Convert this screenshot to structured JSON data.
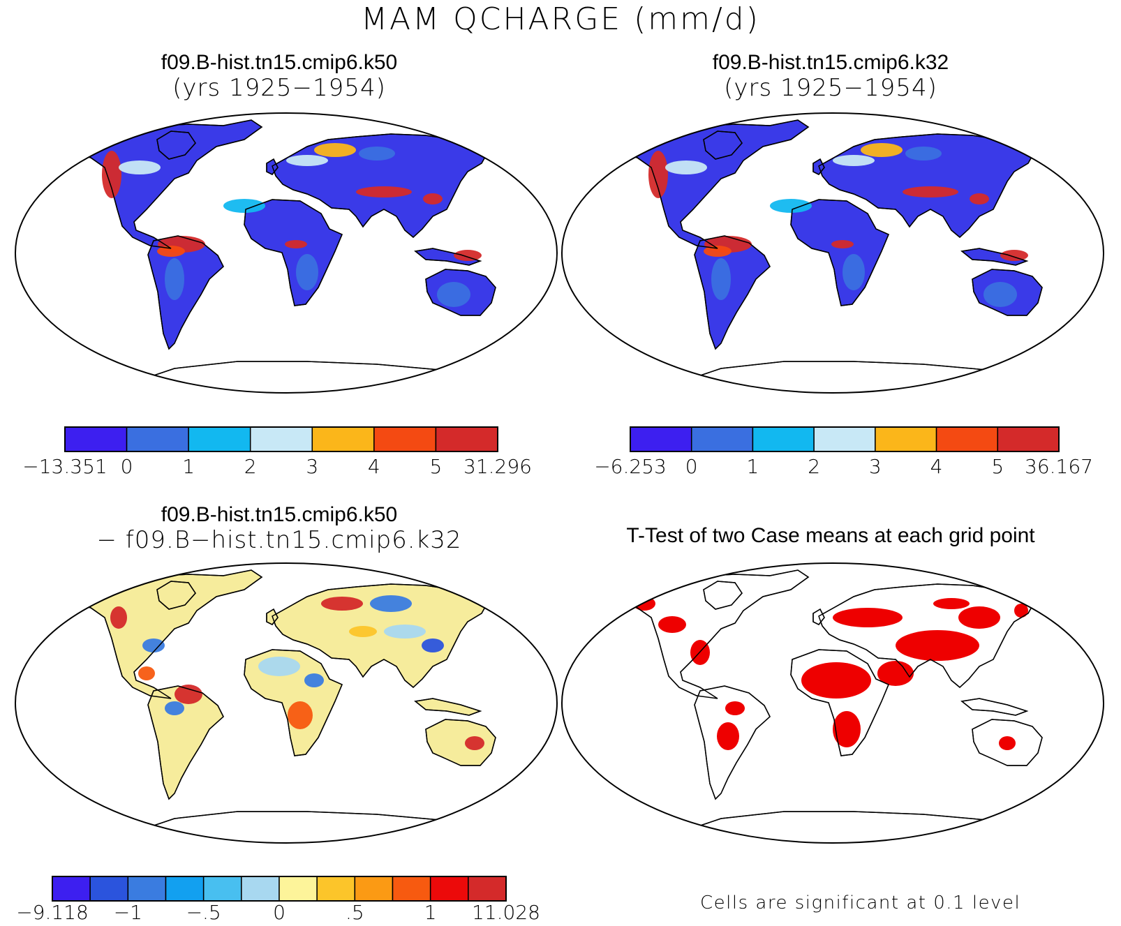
{
  "title": "MAM QCHARGE (mm/d)",
  "panels": [
    {
      "id": "k50",
      "title_line1": "f09.B-hist.tn15.cmip6.k50",
      "title_line2": "(yrs 1925−1954)"
    },
    {
      "id": "k32",
      "title_line1": "f09.B-hist.tn15.cmip6.k32",
      "title_line2": "(yrs 1925−1954)"
    },
    {
      "id": "diff",
      "title_line1": "f09.B-hist.tn15.cmip6.k50",
      "title_line2": "− f09.B−hist.tn15.cmip6.k32"
    },
    {
      "id": "ttest",
      "title_line1": "T-Test of two Case means at each grid point",
      "title_line2": ""
    }
  ],
  "colorbars": {
    "k50": {
      "colors": [
        "#3d1ff0",
        "#3a6fe0",
        "#12b8f0",
        "#c8e8f6",
        "#fbb61a",
        "#f44a12",
        "#d42a2a"
      ],
      "labels": [
        "−13.351",
        "0",
        "1",
        "2",
        "3",
        "4",
        "5",
        "31.296"
      ]
    },
    "k32": {
      "colors": [
        "#3d1ff0",
        "#3a6fe0",
        "#12b8f0",
        "#c8e8f6",
        "#fbb61a",
        "#f44a12",
        "#d42a2a"
      ],
      "labels": [
        "−6.253",
        "0",
        "1",
        "2",
        "3",
        "4",
        "5",
        "36.167"
      ]
    },
    "diff": {
      "colors": [
        "#3d1ff0",
        "#2b54dd",
        "#3a7ce0",
        "#12a0f0",
        "#48bff0",
        "#a8d8f0",
        "#fdf49a",
        "#fcc52a",
        "#fb9a14",
        "#f75a10",
        "#ec0a0a",
        "#d42a2a"
      ],
      "labels": [
        "−9.118",
        "−1",
        "−.5",
        "0",
        ".5",
        "1",
        "11.028"
      ]
    }
  },
  "significance_note": "Cells are significant at 0.1 level",
  "colors": {
    "land_k": "#3a3ae8",
    "land_diff": "#f6ec9c",
    "significant": "#ee0000"
  }
}
